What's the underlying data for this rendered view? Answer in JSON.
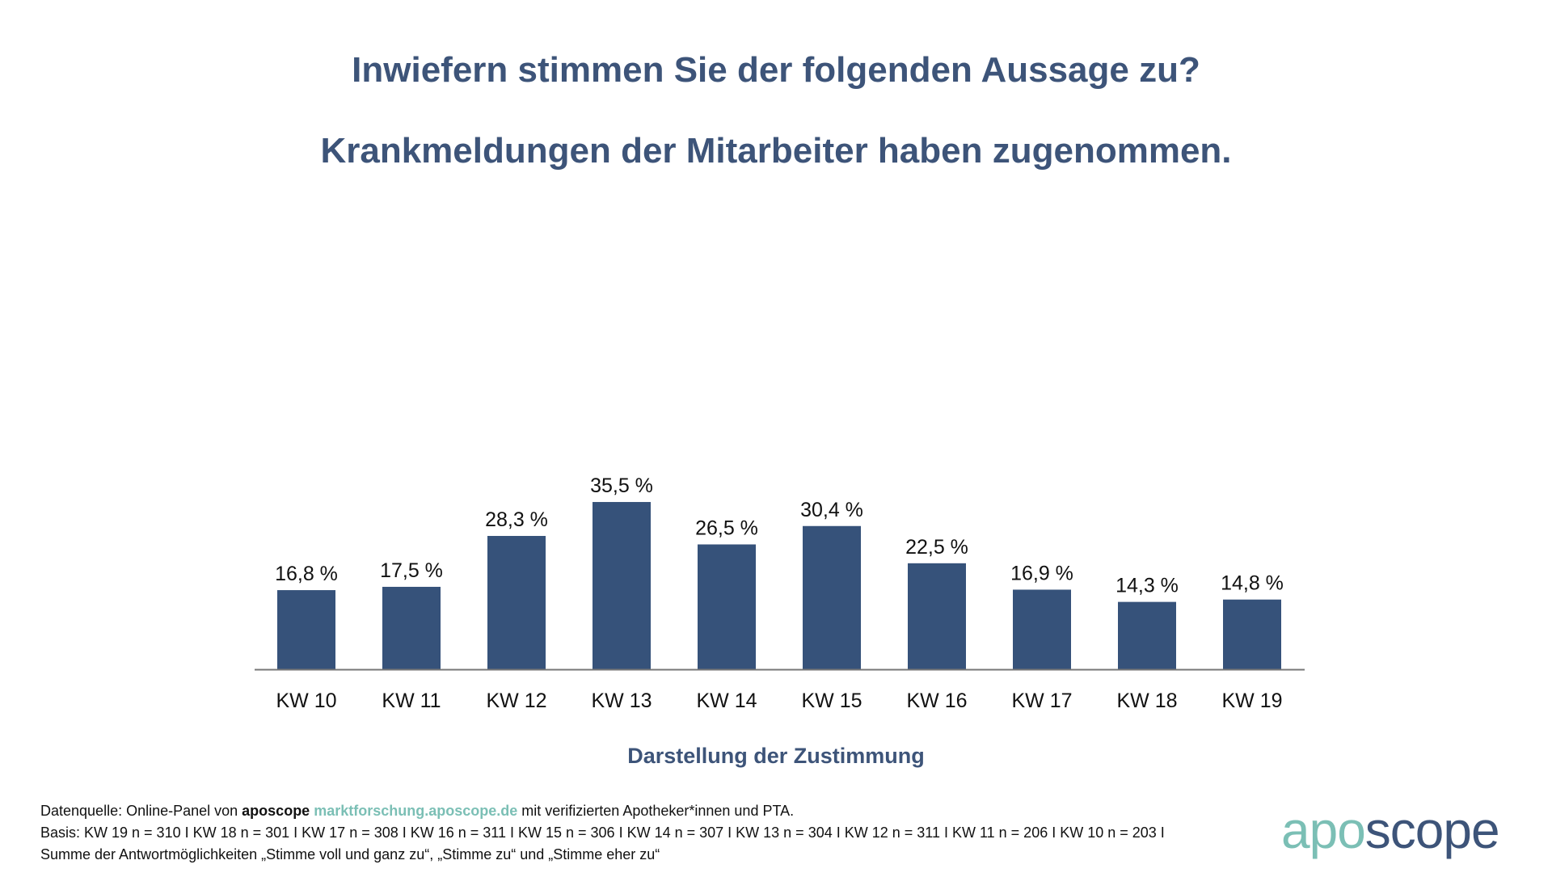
{
  "header": {
    "title_line1": "Inwiefern stimmen Sie der folgenden Aussage zu?",
    "title_line2": "Krankmeldungen der Mitarbeiter haben zugenommen."
  },
  "chart_data": {
    "type": "bar",
    "categories": [
      "KW 10",
      "KW 11",
      "KW 12",
      "KW 13",
      "KW 14",
      "KW 15",
      "KW 16",
      "KW 17",
      "KW 18",
      "KW 19"
    ],
    "values": [
      16.8,
      17.5,
      28.3,
      35.5,
      26.5,
      30.4,
      22.5,
      16.9,
      14.3,
      14.8
    ],
    "data_labels": [
      "16,8 %",
      "17,5 %",
      "28,3 %",
      "35,5 %",
      "26,5 %",
      "30,4 %",
      "22,5 %",
      "16,9 %",
      "14,3 %",
      "14,8 %"
    ],
    "xlabel": "Darstellung der Zustimmung",
    "ylabel": "",
    "unit": "%",
    "grid": false,
    "bar_color": "#36527a"
  },
  "footer": {
    "source_prefix": "Datenquelle: Online-Panel von ",
    "source_brand": "aposcope",
    "source_link": "marktforschung.aposcope.de",
    "source_suffix": " mit verifizierten Apotheker*innen und PTA.",
    "basis": "Basis: KW 19 n = 310 I KW 18 n = 301 I KW 17 n = 308 I KW 16 n = 311 I KW 15 n = 306 I KW 14 n = 307 I KW 13 n = 304 I KW 12 n = 311 I KW 11 n = 206 I KW 10 n = 203 I",
    "note": "Summe der Antwortmöglichkeiten „Stimme voll und ganz zu“, „Stimme zu“ und „Stimme eher zu“"
  },
  "logo": {
    "part1": "apo",
    "part2": "scope"
  },
  "colors": {
    "title": "#3d5479",
    "bar": "#36527a",
    "accent": "#7bbfb5"
  }
}
